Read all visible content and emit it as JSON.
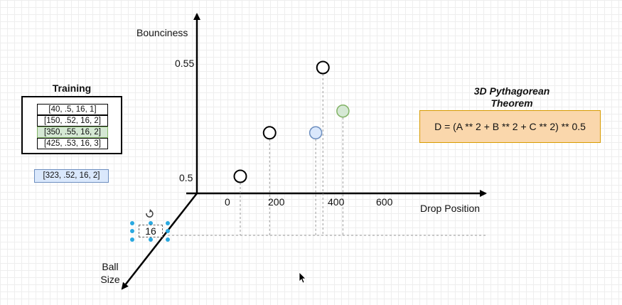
{
  "chart_data": {
    "type": "scatter",
    "axes": {
      "y_label": "Bounciness",
      "x_label": "Drop Position",
      "z_label_line1": "Ball",
      "z_label_line2": "Size"
    },
    "x_ticks": [
      "0",
      "200",
      "400",
      "600"
    ],
    "y_ticks": [
      "0.5",
      "0.55"
    ],
    "points": [
      {
        "kind": "training",
        "x": 40,
        "y": 0.5
      },
      {
        "kind": "training",
        "x": 150,
        "y": 0.52
      },
      {
        "kind": "training",
        "x": 350,
        "y": 0.55
      },
      {
        "kind": "query",
        "x": 323,
        "y": 0.52
      },
      {
        "kind": "highlight",
        "x": 425,
        "y": 0.53
      }
    ],
    "size_marker_value": "16"
  },
  "training": {
    "title": "Training",
    "rows": [
      "[40, .5, 16, 1]",
      "[150, .52, 16, 2]",
      "[350, .55, 16, 2]",
      "[425, .53, 16, 3]"
    ],
    "highlight_index": 2
  },
  "query": {
    "label": "[323, .52, 16, 2]"
  },
  "formula": {
    "title_line1": "3D Pythagorean",
    "title_line2": "Theorem",
    "text": "D = (A ** 2 + B ** 2 + C ** 2) ** 0.5"
  },
  "colors": {
    "training_highlight_fill": "#d5e8d4",
    "training_highlight_stroke": "#82b366",
    "query_fill": "#dae8fc",
    "query_stroke": "#6c8ebf",
    "formula_fill": "#fad7ac",
    "formula_stroke": "#d79b00",
    "selection_handle": "#29a8e0"
  }
}
